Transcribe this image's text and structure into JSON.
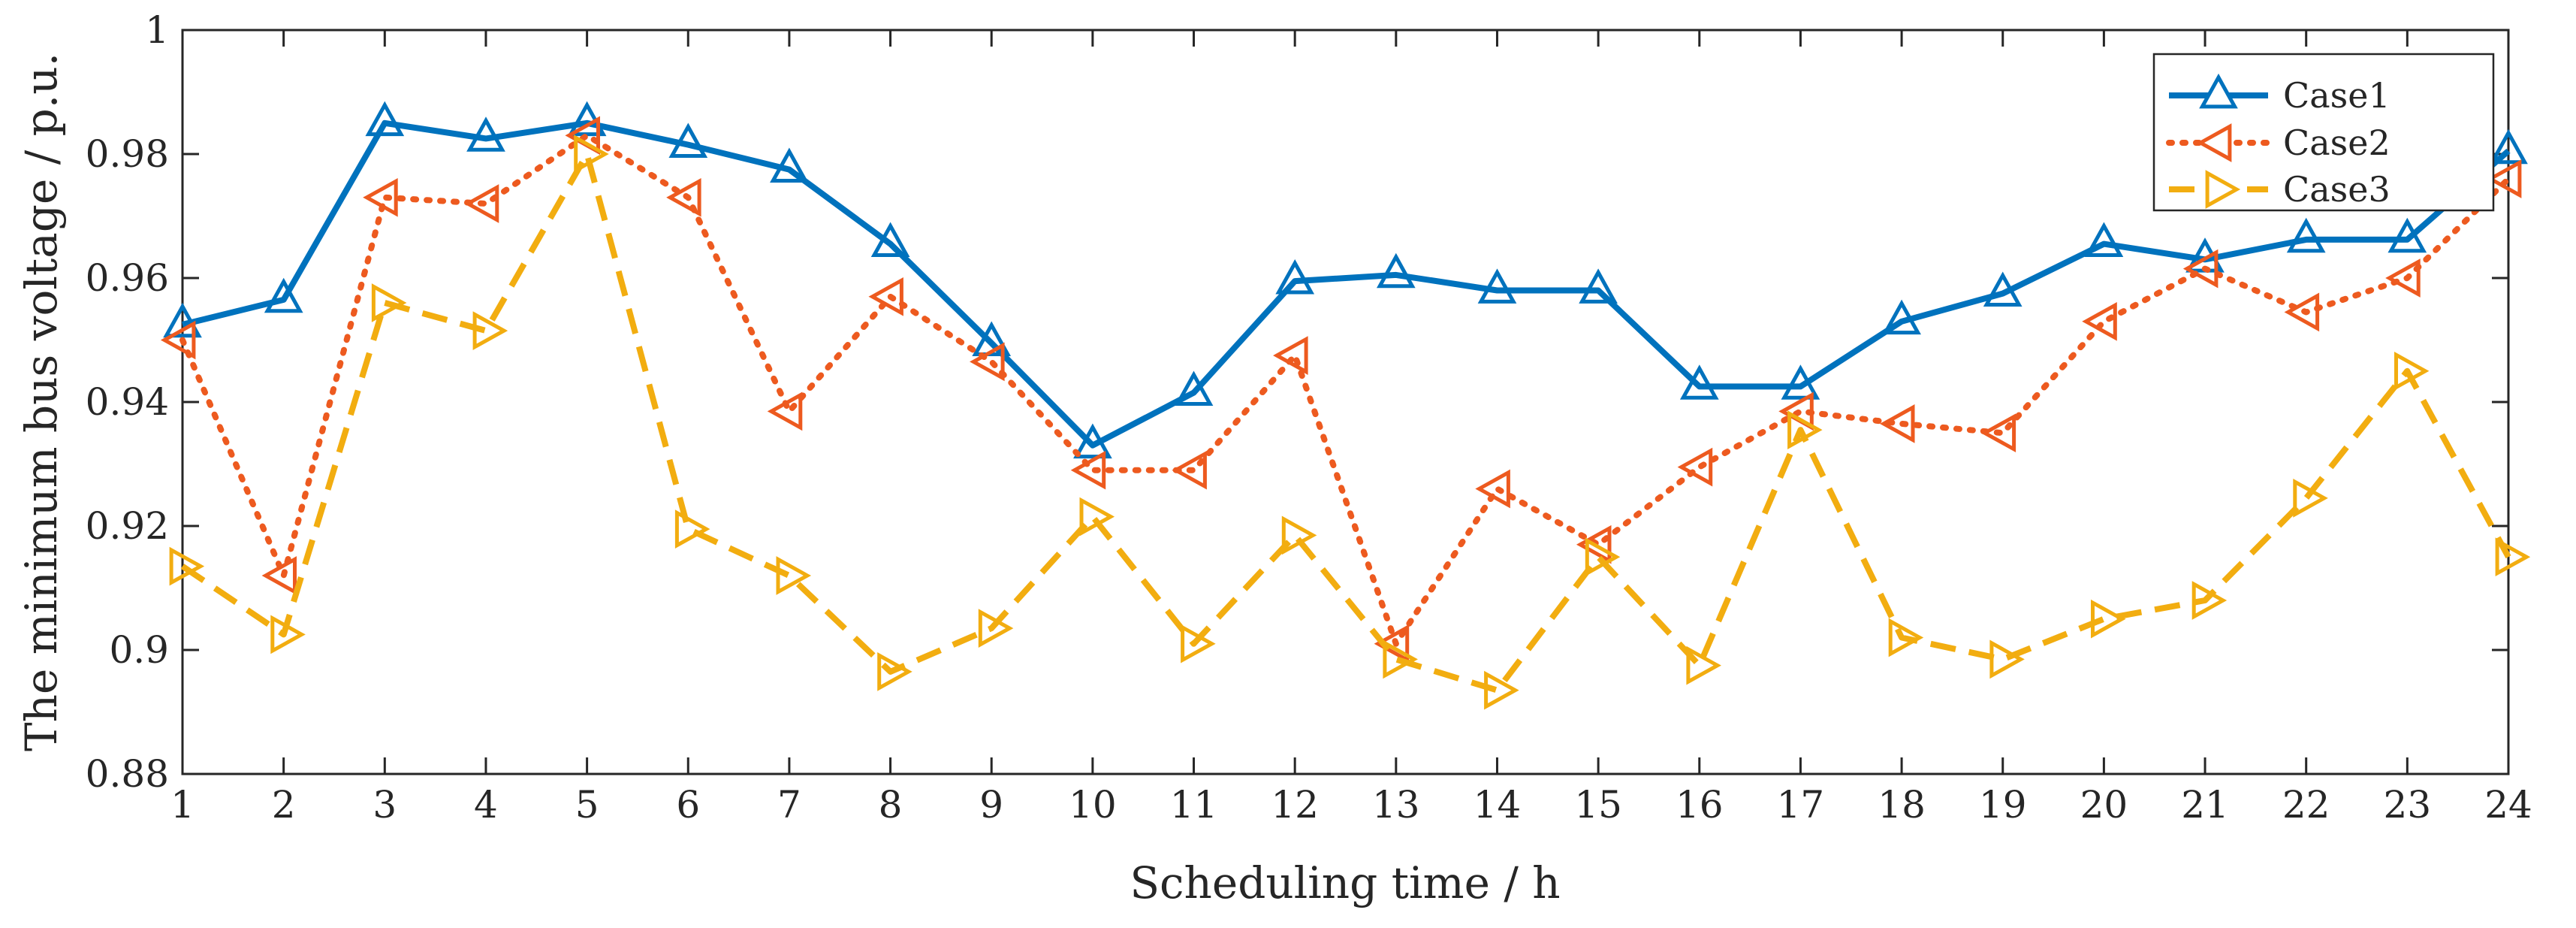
{
  "chart_data": {
    "type": "line",
    "title": "",
    "xlabel": "Scheduling time / h",
    "ylabel": "The minimum bus voltage / p.u.",
    "x": [
      1,
      2,
      3,
      4,
      5,
      6,
      7,
      8,
      9,
      10,
      11,
      12,
      13,
      14,
      15,
      16,
      17,
      18,
      19,
      20,
      21,
      22,
      23,
      24
    ],
    "xlim": [
      1,
      24
    ],
    "ylim": [
      0.88,
      1.0
    ],
    "xticks": [
      "1",
      "2",
      "3",
      "4",
      "5",
      "6",
      "7",
      "8",
      "9",
      "10",
      "11",
      "12",
      "13",
      "14",
      "15",
      "16",
      "17",
      "18",
      "19",
      "20",
      "21",
      "22",
      "23",
      "24"
    ],
    "yticks": [
      {
        "value": 0.88,
        "label": "0.88"
      },
      {
        "value": 0.9,
        "label": "0.9"
      },
      {
        "value": 0.92,
        "label": "0.92"
      },
      {
        "value": 0.94,
        "label": "0.94"
      },
      {
        "value": 0.96,
        "label": "0.96"
      },
      {
        "value": 0.98,
        "label": "0.98"
      },
      {
        "value": 1.0,
        "label": "1"
      }
    ],
    "grid": false,
    "legend_position": "top-right",
    "series": [
      {
        "name": "Case1",
        "color": "#0072BD",
        "line_style": "solid",
        "marker": "triangle-up",
        "values": [
          0.9525,
          0.9565,
          0.985,
          0.9825,
          0.985,
          0.9815,
          0.9775,
          0.9655,
          0.9495,
          0.933,
          0.9415,
          0.9595,
          0.9605,
          0.958,
          0.958,
          0.9425,
          0.9425,
          0.953,
          0.9575,
          0.9655,
          0.963,
          0.9662,
          0.9662,
          0.9805
        ]
      },
      {
        "name": "Case2",
        "color": "#ED5A1F",
        "line_style": "dotted",
        "marker": "triangle-left",
        "values": [
          0.95,
          0.912,
          0.973,
          0.972,
          0.983,
          0.973,
          0.9385,
          0.957,
          0.9465,
          0.929,
          0.929,
          0.9475,
          0.901,
          0.926,
          0.917,
          0.9295,
          0.9385,
          0.9365,
          0.935,
          0.953,
          0.9615,
          0.9545,
          0.96,
          0.976
        ]
      },
      {
        "name": "Case3",
        "color": "#F2AD10",
        "line_style": "dashed",
        "marker": "triangle-right",
        "values": [
          0.9135,
          0.9025,
          0.956,
          0.9515,
          0.98,
          0.9195,
          0.912,
          0.8965,
          0.9035,
          0.9215,
          0.901,
          0.9185,
          0.8985,
          0.8935,
          0.915,
          0.8975,
          0.9355,
          0.902,
          0.8985,
          0.905,
          0.908,
          0.9245,
          0.945,
          0.915
        ]
      }
    ]
  }
}
